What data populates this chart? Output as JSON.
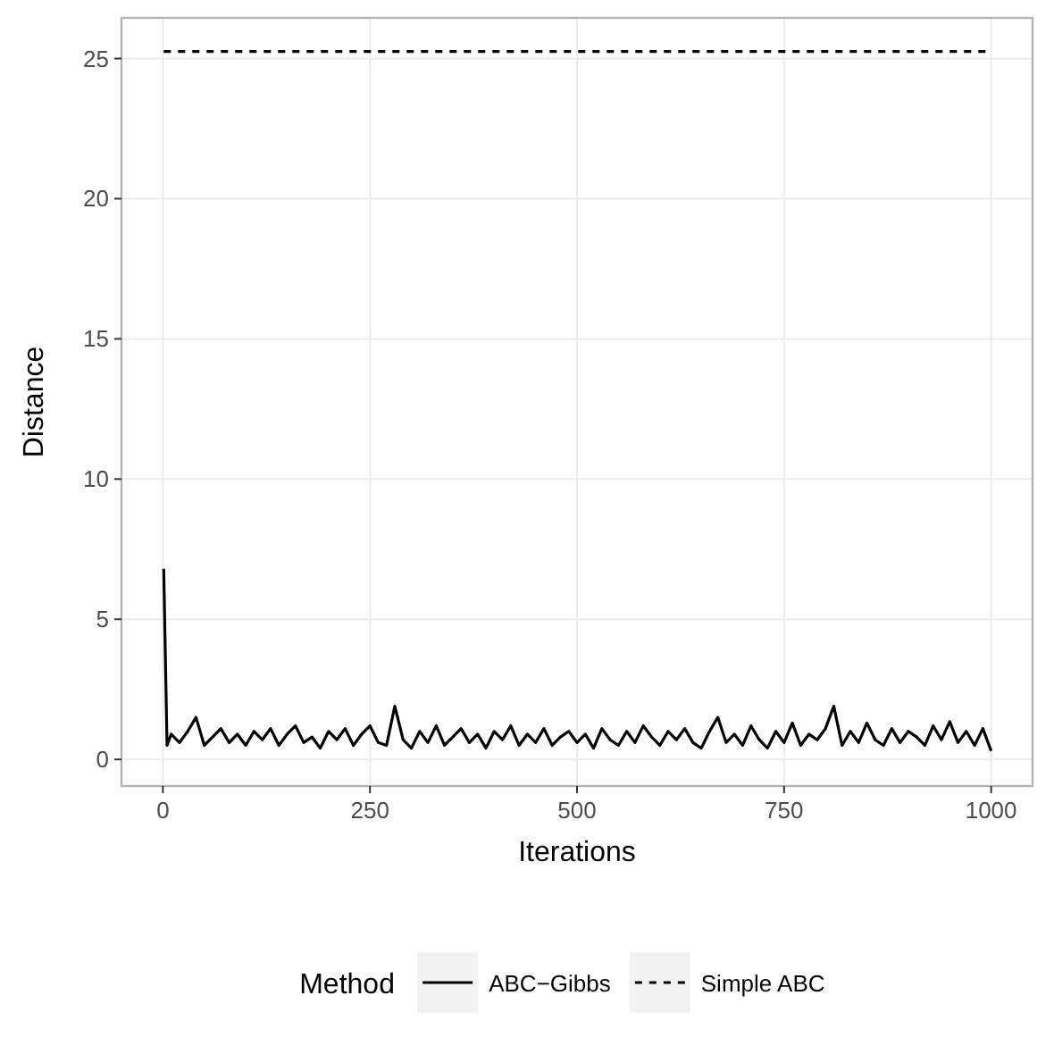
{
  "chart_data": {
    "type": "line",
    "xlabel": "Iterations",
    "ylabel": "Distance",
    "legend_title": "Method",
    "legend": "bottom",
    "grid": true,
    "xlim": [
      -50,
      1050
    ],
    "xticks": [
      0,
      250,
      500,
      750,
      1000
    ],
    "ylim": [
      -0.95,
      26.45
    ],
    "yticks": [
      0,
      5,
      10,
      15,
      20,
      25
    ],
    "series": [
      {
        "name": "ABC−Gibbs",
        "color": "#000000",
        "line_style": "solid",
        "x": [
          1,
          5,
          10,
          20,
          30,
          40,
          50,
          60,
          70,
          80,
          90,
          100,
          110,
          120,
          130,
          140,
          150,
          160,
          170,
          180,
          190,
          200,
          210,
          220,
          230,
          240,
          250,
          260,
          270,
          280,
          290,
          300,
          310,
          320,
          330,
          340,
          350,
          360,
          370,
          380,
          390,
          400,
          410,
          420,
          430,
          440,
          450,
          460,
          470,
          480,
          490,
          500,
          510,
          520,
          530,
          540,
          550,
          560,
          570,
          580,
          590,
          600,
          610,
          620,
          630,
          640,
          650,
          660,
          670,
          680,
          690,
          700,
          710,
          720,
          730,
          740,
          750,
          760,
          770,
          780,
          790,
          800,
          810,
          820,
          830,
          840,
          850,
          860,
          870,
          880,
          890,
          900,
          910,
          920,
          930,
          940,
          950,
          960,
          970,
          980,
          990,
          1000
        ],
        "values": [
          6.8,
          0.5,
          0.9,
          0.6,
          1.0,
          1.5,
          0.5,
          0.8,
          1.1,
          0.6,
          0.9,
          0.5,
          1.0,
          0.7,
          1.1,
          0.5,
          0.9,
          1.2,
          0.6,
          0.8,
          0.4,
          1.0,
          0.7,
          1.1,
          0.5,
          0.9,
          1.2,
          0.6,
          0.5,
          1.9,
          0.7,
          0.4,
          1.0,
          0.6,
          1.2,
          0.5,
          0.8,
          1.1,
          0.6,
          0.9,
          0.4,
          1.0,
          0.7,
          1.2,
          0.5,
          0.9,
          0.6,
          1.1,
          0.5,
          0.8,
          1.0,
          0.6,
          0.9,
          0.4,
          1.1,
          0.7,
          0.5,
          1.0,
          0.6,
          1.2,
          0.8,
          0.5,
          1.0,
          0.7,
          1.1,
          0.6,
          0.4,
          1.0,
          1.5,
          0.6,
          0.9,
          0.5,
          1.2,
          0.7,
          0.4,
          1.0,
          0.6,
          1.3,
          0.5,
          0.9,
          0.7,
          1.1,
          1.9,
          0.5,
          1.0,
          0.6,
          1.3,
          0.7,
          0.5,
          1.1,
          0.6,
          1.0,
          0.8,
          0.5,
          1.2,
          0.7,
          1.35,
          0.6,
          1.0,
          0.5,
          1.1,
          0.3
        ]
      },
      {
        "name": "Simple ABC",
        "color": "#000000",
        "line_style": "dashed",
        "x": [
          1,
          1000
        ],
        "values": [
          25.25,
          25.25
        ]
      }
    ]
  }
}
